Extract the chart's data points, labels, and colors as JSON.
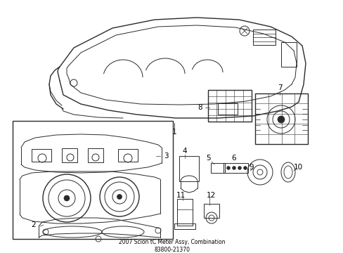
{
  "title": "2007 Scion tC Meter Assy, Combination\n83800-21370",
  "background_color": "#ffffff",
  "lc": "#2a2a2a",
  "fig_width": 4.89,
  "fig_height": 3.6,
  "dpi": 100
}
